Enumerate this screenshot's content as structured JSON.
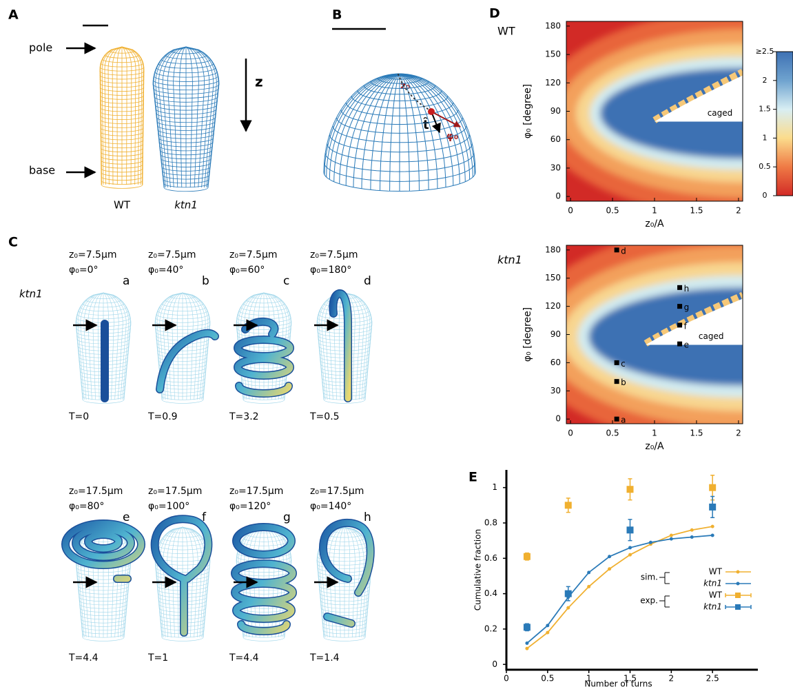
{
  "panel_labels": [
    "A",
    "B",
    "C",
    "D",
    "E"
  ],
  "panel_a": {
    "pole": "pole",
    "base": "base",
    "wt": "WT",
    "mutant": "ktn1",
    "axis": "z"
  },
  "panel_b": {
    "z0": "z₀",
    "t": "t̂",
    "phi0": "φ₀"
  },
  "panel_c": {
    "row_label": "ktn1",
    "cases": [
      {
        "z0": "z₀=7.5μm",
        "phi0": "φ₀=0°",
        "letter": "a",
        "time": "T=0"
      },
      {
        "z0": "z₀=7.5μm",
        "phi0": "φ₀=40°",
        "letter": "b",
        "time": "T=0.9"
      },
      {
        "z0": "z₀=7.5μm",
        "phi0": "φ₀=60°",
        "letter": "c",
        "time": "T=3.2"
      },
      {
        "z0": "z₀=7.5μm",
        "phi0": "φ₀=180°",
        "letter": "d",
        "time": "T=0.5"
      },
      {
        "z0": "z₀=17.5μm",
        "phi0": "φ₀=80°",
        "letter": "e",
        "time": "T=4.4"
      },
      {
        "z0": "z₀=17.5μm",
        "phi0": "φ₀=100°",
        "letter": "f",
        "time": "T=1"
      },
      {
        "z0": "z₀=17.5μm",
        "phi0": "φ₀=120°",
        "letter": "g",
        "time": "T=4.4"
      },
      {
        "z0": "z₀=17.5μm",
        "phi0": "φ₀=140°",
        "letter": "h",
        "time": "T=1.4"
      }
    ]
  },
  "chart_data": [
    {
      "type": "heatmap",
      "label": "WT",
      "xlabel": "z₀/A",
      "ylabel": "φ₀ [degree]",
      "annotation": "caged",
      "xlim": [
        -0.05,
        2.05
      ],
      "ylim": [
        -5,
        185
      ],
      "xticks": [
        0,
        0.5,
        1,
        1.5,
        2
      ],
      "yticks": [
        0,
        30,
        60,
        90,
        120,
        150,
        180
      ],
      "colorbar": {
        "lim": [
          0,
          2.5
        ],
        "ticks": [
          0,
          0.5,
          1,
          1.5,
          2,
          {
            "value": 2.5,
            "label": "≥2.5"
          }
        ]
      }
    },
    {
      "type": "heatmap",
      "label": "ktn1",
      "xlabel": "z₀/A",
      "ylabel": "φ₀ [degree]",
      "annotation": "caged",
      "xlim": [
        -0.05,
        2.05
      ],
      "ylim": [
        -5,
        185
      ],
      "xticks": [
        0,
        0.5,
        1,
        1.5,
        2
      ],
      "yticks": [
        0,
        30,
        60,
        90,
        120,
        150,
        180
      ],
      "points": {
        "x": [
          0.55,
          0.55,
          0.55,
          0.55,
          1.3,
          1.3,
          1.3,
          1.3
        ],
        "y": [
          0,
          40,
          60,
          180,
          80,
          100,
          120,
          140
        ],
        "labels": [
          "a",
          "b",
          "c",
          "d",
          "e",
          "f",
          "g",
          "h"
        ]
      }
    },
    {
      "type": "line",
      "xlabel": "Number of turns",
      "ylabel": "Cumulative fraction",
      "xlim": [
        0,
        3.05
      ],
      "ylim": [
        -0.03,
        1.1
      ],
      "xticks": [
        0,
        0.5,
        1,
        1.5,
        2,
        2.5
      ],
      "yticks": [
        0,
        0.2,
        0.4,
        0.6,
        0.8,
        1
      ],
      "series_groups": [
        {
          "name": "sim.",
          "series": [
            {
              "name": "WT",
              "color": "#f0b030",
              "x": [
                0.25,
                0.5,
                0.75,
                1,
                1.25,
                1.5,
                1.75,
                2,
                2.25,
                2.5
              ],
              "values": [
                0.09,
                0.18,
                0.32,
                0.44,
                0.54,
                0.62,
                0.68,
                0.73,
                0.76,
                0.78
              ]
            },
            {
              "name": "ktn1",
              "color": "#2a7ab8",
              "x": [
                0.25,
                0.5,
                0.75,
                1,
                1.25,
                1.5,
                1.75,
                2,
                2.25,
                2.5
              ],
              "values": [
                0.12,
                0.22,
                0.38,
                0.52,
                0.61,
                0.66,
                0.69,
                0.71,
                0.72,
                0.73
              ]
            }
          ]
        },
        {
          "name": "exp.",
          "series": [
            {
              "name": "WT",
              "color": "#f0b030",
              "x": [
                0.25,
                0.75,
                1.5,
                2.5
              ],
              "values": [
                0.61,
                0.9,
                0.99,
                1.0
              ],
              "errors": [
                0.02,
                0.04,
                0.06,
                0.07
              ]
            },
            {
              "name": "ktn1",
              "color": "#2a7ab8",
              "x": [
                0.25,
                0.75,
                1.5,
                2.5
              ],
              "values": [
                0.21,
                0.4,
                0.76,
                0.89
              ],
              "errors": [
                0.02,
                0.04,
                0.06,
                0.06
              ]
            }
          ]
        }
      ]
    }
  ]
}
